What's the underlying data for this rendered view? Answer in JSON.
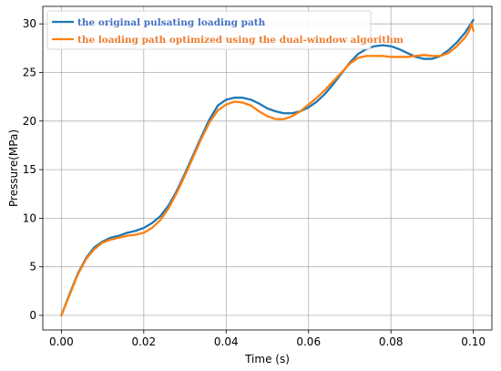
{
  "chart_data": {
    "type": "line",
    "xlabel": "Time  (s)",
    "ylabel": "Pressure(MPa)",
    "xlim": [
      -0.0045,
      0.1045
    ],
    "ylim": [
      -1.5,
      31.8
    ],
    "xticks": [
      "0.00",
      "0.02",
      "0.04",
      "0.06",
      "0.08",
      "0.10"
    ],
    "xtick_values": [
      0.0,
      0.02,
      0.04,
      0.06,
      0.08,
      0.1
    ],
    "yticks": [
      "0",
      "5",
      "10",
      "15",
      "20",
      "25",
      "30"
    ],
    "ytick_values": [
      0,
      5,
      10,
      15,
      20,
      25,
      30
    ],
    "grid": true,
    "legend_position": "top-left",
    "series": [
      {
        "name": "the original pulsating loading path",
        "color": "#1f77b4",
        "label_color": "#4472c4",
        "x": [
          0.0,
          0.002,
          0.004,
          0.006,
          0.008,
          0.01,
          0.012,
          0.014,
          0.016,
          0.018,
          0.02,
          0.022,
          0.024,
          0.026,
          0.028,
          0.03,
          0.032,
          0.034,
          0.036,
          0.038,
          0.04,
          0.042,
          0.044,
          0.046,
          0.048,
          0.05,
          0.052,
          0.054,
          0.056,
          0.058,
          0.06,
          0.062,
          0.064,
          0.066,
          0.068,
          0.07,
          0.072,
          0.074,
          0.076,
          0.078,
          0.08,
          0.082,
          0.084,
          0.086,
          0.088,
          0.09,
          0.092,
          0.094,
          0.096,
          0.098,
          0.1
        ],
        "y": [
          0.0,
          2.2,
          4.3,
          5.9,
          7.0,
          7.6,
          8.0,
          8.2,
          8.5,
          8.7,
          9.0,
          9.5,
          10.2,
          11.3,
          12.8,
          14.6,
          16.5,
          18.4,
          20.2,
          21.6,
          22.2,
          22.4,
          22.4,
          22.2,
          21.8,
          21.3,
          21.0,
          20.8,
          20.8,
          21.0,
          21.4,
          22.0,
          22.8,
          23.8,
          24.9,
          26.0,
          26.9,
          27.4,
          27.7,
          27.8,
          27.7,
          27.4,
          27.0,
          26.6,
          26.4,
          26.4,
          26.7,
          27.3,
          28.1,
          29.1,
          30.4
        ]
      },
      {
        "name": "the loading path optimized using the dual-window algorithm",
        "color": "#ff7f0e",
        "label_color": "#ed7d31",
        "x": [
          0.0,
          0.002,
          0.004,
          0.006,
          0.008,
          0.01,
          0.012,
          0.014,
          0.016,
          0.018,
          0.02,
          0.022,
          0.024,
          0.026,
          0.028,
          0.03,
          0.032,
          0.034,
          0.036,
          0.038,
          0.04,
          0.042,
          0.044,
          0.046,
          0.048,
          0.05,
          0.052,
          0.054,
          0.056,
          0.058,
          0.06,
          0.062,
          0.064,
          0.066,
          0.068,
          0.07,
          0.072,
          0.074,
          0.076,
          0.078,
          0.08,
          0.082,
          0.084,
          0.086,
          0.088,
          0.09,
          0.092,
          0.094,
          0.096,
          0.098,
          0.099,
          0.0995,
          0.1
        ],
        "y": [
          0.0,
          2.1,
          4.2,
          5.8,
          6.8,
          7.5,
          7.8,
          8.0,
          8.2,
          8.3,
          8.5,
          9.0,
          9.8,
          11.0,
          12.6,
          14.4,
          16.3,
          18.2,
          19.9,
          21.1,
          21.7,
          22.0,
          21.9,
          21.6,
          21.0,
          20.5,
          20.2,
          20.2,
          20.5,
          21.0,
          21.7,
          22.4,
          23.2,
          24.1,
          25.0,
          25.9,
          26.5,
          26.7,
          26.7,
          26.7,
          26.6,
          26.6,
          26.6,
          26.7,
          26.8,
          26.7,
          26.7,
          27.0,
          27.7,
          28.6,
          29.3,
          30.0,
          29.3
        ]
      }
    ]
  }
}
